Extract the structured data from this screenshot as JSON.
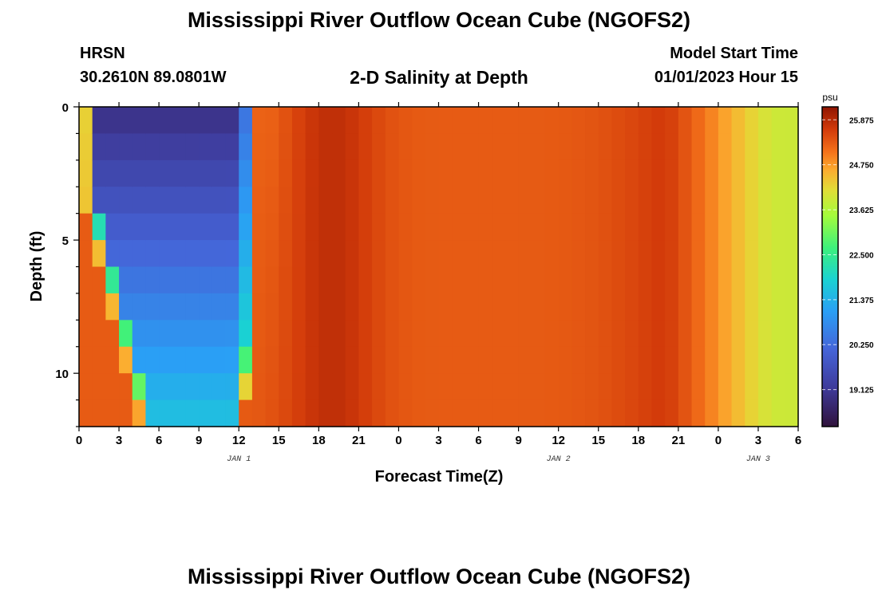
{
  "header": {
    "title": "Mississippi River Outflow Ocean Cube (NGOFS2)",
    "station": "HRSN",
    "coords": "30.2610N  89.0801W",
    "subtitle": "2-D Salinity at Depth",
    "model_start_label": "Model Start Time",
    "model_start_value": "01/01/2023 Hour 15"
  },
  "footer": {
    "title": "Mississippi River Outflow Ocean Cube (NGOFS2)"
  },
  "chart_data": {
    "type": "heatmap",
    "title": "2-D Salinity at Depth",
    "xlabel": "Forecast Time(Z)",
    "ylabel": "Depth (ft)",
    "x_range_hours": [
      0,
      54
    ],
    "x_tick_labels": [
      "0",
      "3",
      "6",
      "9",
      "12",
      "15",
      "18",
      "21",
      "0",
      "3",
      "6",
      "9",
      "12",
      "15",
      "18",
      "21",
      "0",
      "3",
      "6"
    ],
    "date_labels": [
      {
        "label": "JAN 1",
        "hour": 12
      },
      {
        "label": "JAN 2",
        "hour": 36
      },
      {
        "label": "JAN 3",
        "hour": 51
      }
    ],
    "y_range": [
      0,
      12
    ],
    "y_tick_labels": [
      "0",
      "5",
      "10"
    ],
    "y_tick_values": [
      0,
      5,
      10
    ],
    "colorbar": {
      "unit": "psu",
      "range": [
        18.2,
        26.2
      ],
      "tick_values": [
        25.875,
        24.75,
        23.625,
        22.5,
        21.375,
        20.25,
        19.125
      ],
      "tick_labels": [
        "25.875",
        "24.750",
        "23.625",
        "22.500",
        "21.375",
        "20.250",
        "19.125"
      ]
    },
    "n_time_steps": 54,
    "depth_levels": [
      0.5,
      1.5,
      2.5,
      3.5,
      4.5,
      5.5,
      6.5,
      7.5,
      8.5,
      9.5,
      10.5,
      11.5
    ]
  }
}
